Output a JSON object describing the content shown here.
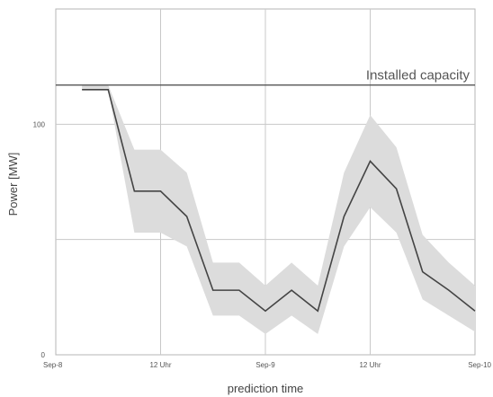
{
  "chart_data": {
    "type": "line",
    "title": "",
    "xlabel": "prediction time",
    "ylabel": "Power [MW]",
    "x_tick_labels": [
      "Sep-8",
      "12 Uhr",
      "Sep-9",
      "12 Uhr",
      "Sep-10"
    ],
    "x_tick_values": [
      0,
      12,
      24,
      36,
      48
    ],
    "xlim": [
      0,
      48
    ],
    "y_tick_labels": [
      "0",
      "100"
    ],
    "y_tick_values": [
      0,
      100
    ],
    "ylim": [
      0,
      150
    ],
    "grid": true,
    "colors": {
      "line": "#444444",
      "band": "#dcdcdc",
      "grid": "#c8c8c8",
      "capacity": "#555555"
    },
    "annotations": [
      {
        "label": "Installed capacity",
        "y": 117
      }
    ],
    "series": [
      {
        "x": [
          3,
          6,
          9,
          12,
          15,
          18,
          21,
          24,
          27,
          30,
          33,
          36,
          39,
          42,
          45,
          48
        ],
        "values": [
          115,
          115,
          71,
          71,
          60,
          28,
          28,
          19,
          28,
          19,
          60,
          84,
          72,
          36,
          28,
          19
        ],
        "lower": [
          115,
          115,
          53,
          53,
          47,
          17,
          17,
          9,
          17,
          9,
          47,
          64,
          53,
          24,
          17,
          10
        ],
        "upper": [
          117,
          117,
          89,
          89,
          79,
          40,
          40,
          30,
          40,
          30,
          79,
          104,
          90,
          52,
          40,
          30
        ]
      }
    ]
  }
}
